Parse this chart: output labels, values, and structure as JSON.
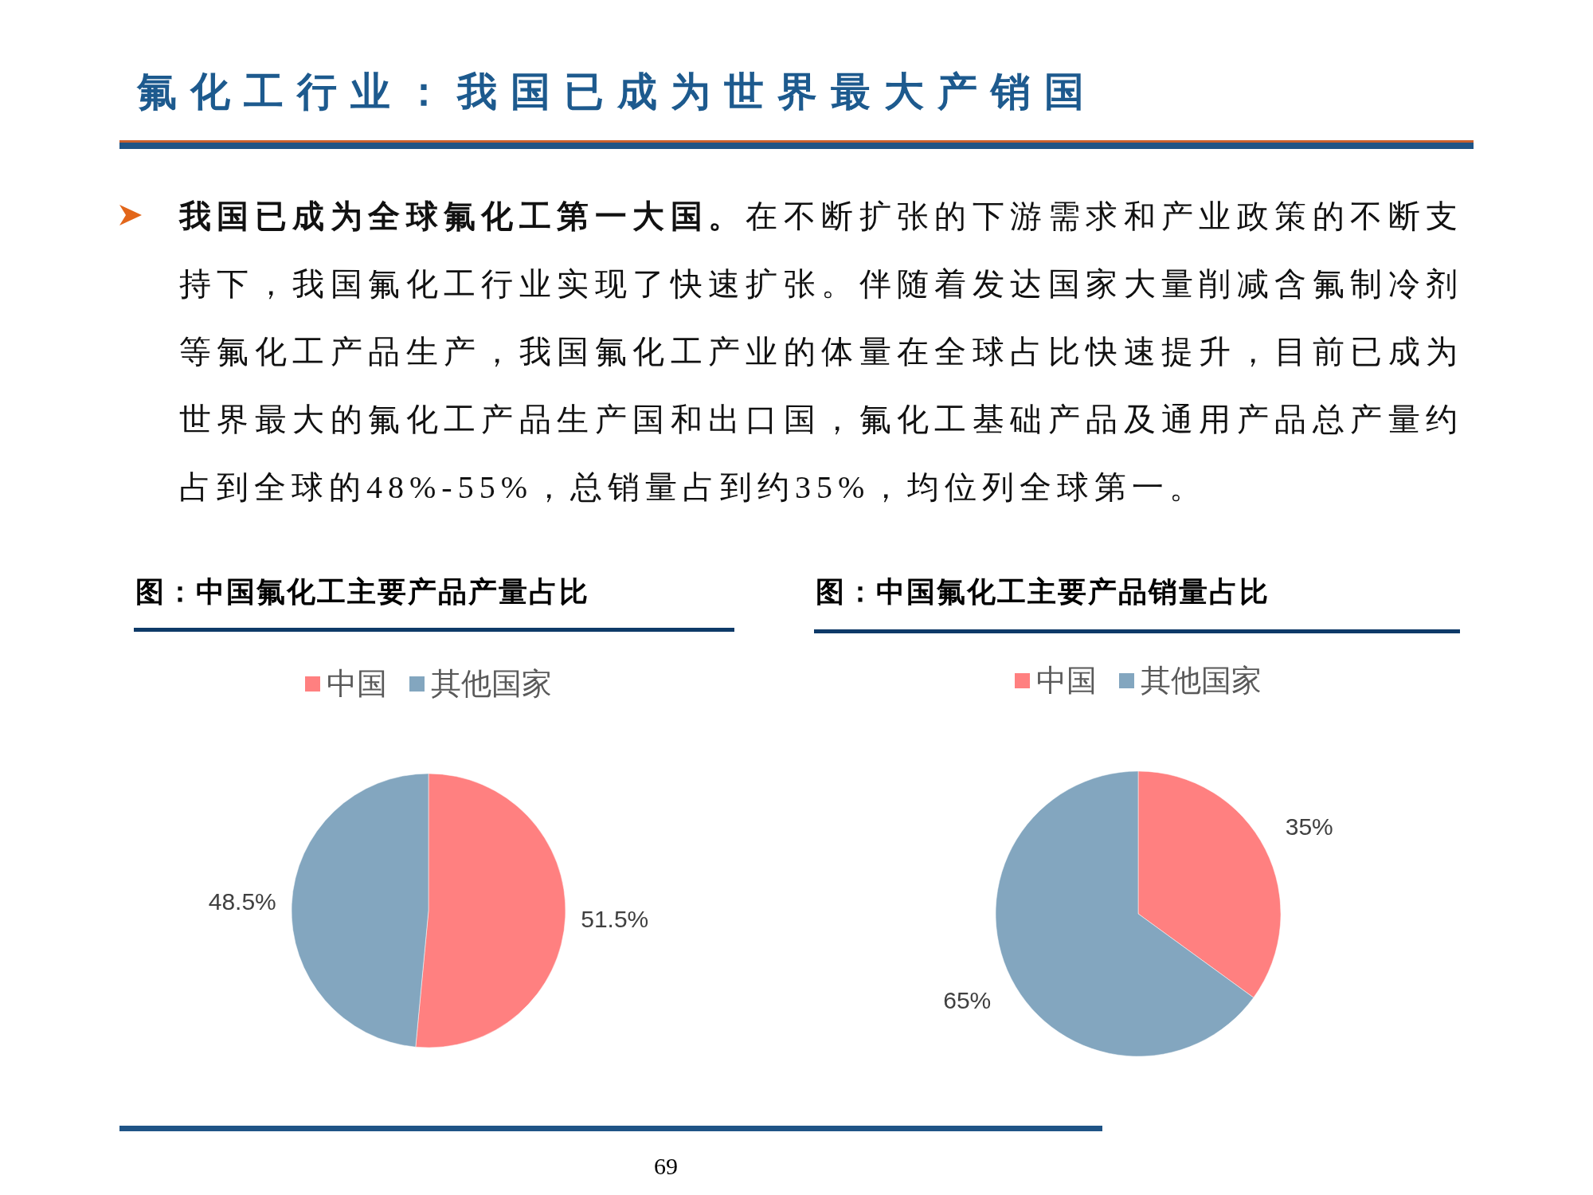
{
  "chart_data": [
    {
      "type": "other",
      "title": "氟化工行业：我国已成为世界最大产销国",
      "annotations": [
        "**我国已成为全球氟化工第一大国。**在不断扩张的下游需求和产业政策的不断支持下，我国氟化工行业实现了快速扩张。伴随着发达国家大量削减含氟制冷剂等氟化工产品生产，我国氟化工产业的体量在全球占比快速提升，目前已成为世界最大的氟化工产品生产国和出口国，氟化工基础产品及通用产品总产量约占到全球的48%-55%，总销量占到约35%，均位列全球第一。",
        "69"
      ]
    },
    {
      "type": "pie",
      "title": "图：中国氟化工主要产品产量占比",
      "categories": [
        "中国",
        "其他国家"
      ],
      "values": [
        51.5,
        48.5
      ],
      "colors": [
        "#ff8080",
        "#83a6bf"
      ],
      "value_labels": [
        "51.5%",
        "48.5%"
      ],
      "legend": "top"
    },
    {
      "type": "pie",
      "title": "图：中国氟化工主要产品销量占比",
      "categories": [
        "中国",
        "其他国家"
      ],
      "values": [
        35,
        65
      ],
      "colors": [
        "#ff8080",
        "#83a6bf"
      ],
      "value_labels": [
        "35%",
        "65%"
      ],
      "legend": "top"
    }
  ]
}
